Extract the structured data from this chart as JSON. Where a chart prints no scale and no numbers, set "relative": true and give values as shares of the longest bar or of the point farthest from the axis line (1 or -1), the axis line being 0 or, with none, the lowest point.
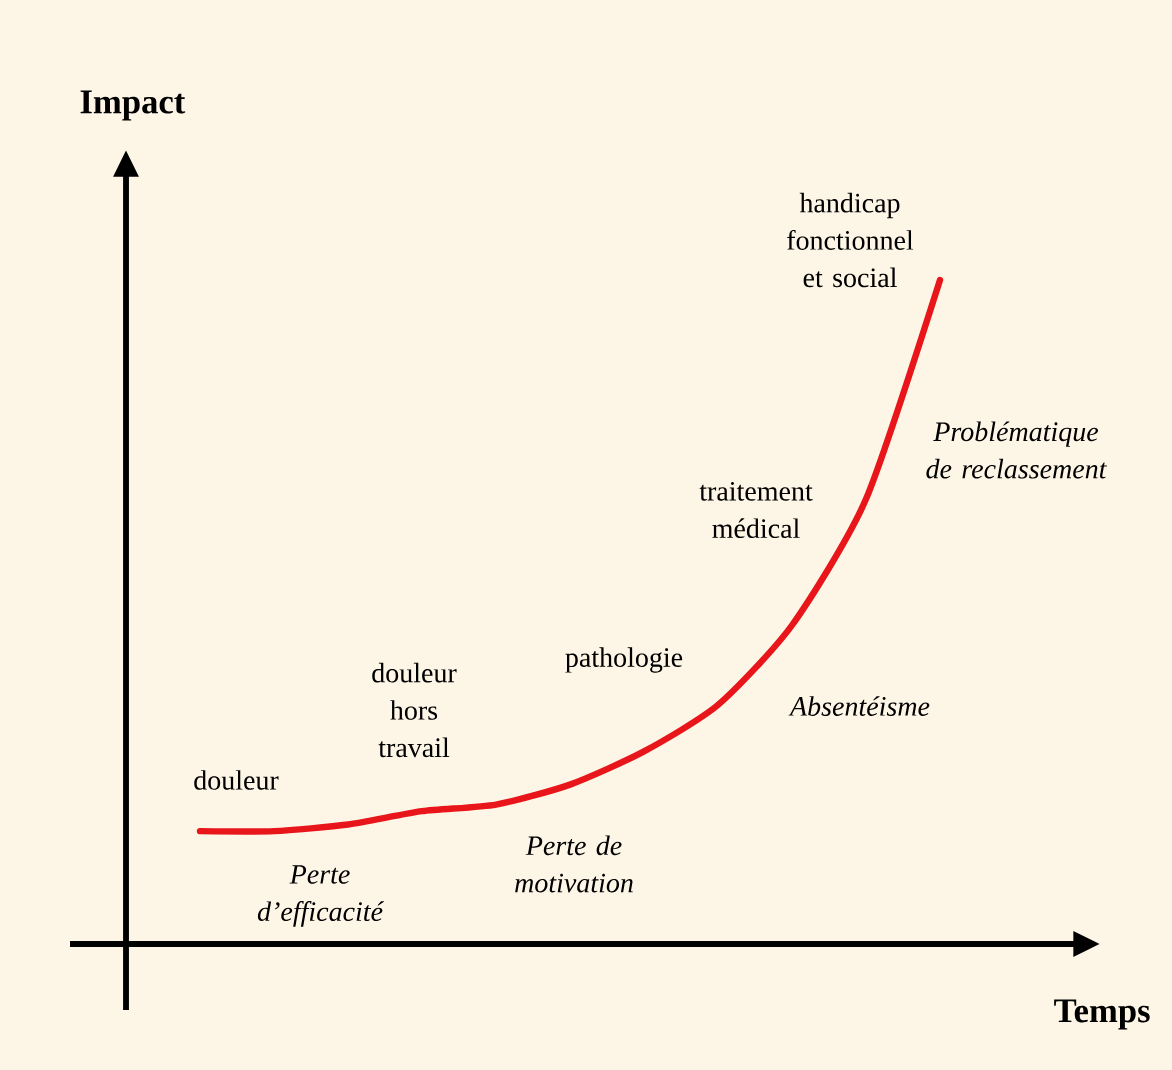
{
  "chart_data": {
    "type": "line",
    "relative": true,
    "color": "#e8161b",
    "xlabel": "Temps",
    "ylabel": "Impact",
    "categories": [
      null,
      null,
      null,
      null,
      null,
      null,
      null,
      null,
      null,
      null,
      null
    ],
    "values": [
      0.17,
      0.17,
      0.18,
      0.2,
      0.21,
      0.24,
      0.29,
      0.36,
      0.48,
      0.67,
      1
    ],
    "annotations": [
      "douleur",
      "douleur hors travail",
      "pathologie",
      "traitement médical",
      "handicap fonctionnel et social",
      "Perte d’efficacité",
      "Perte de motivation",
      "Absentéisme",
      "Problématique de reclassement"
    ]
  }
}
